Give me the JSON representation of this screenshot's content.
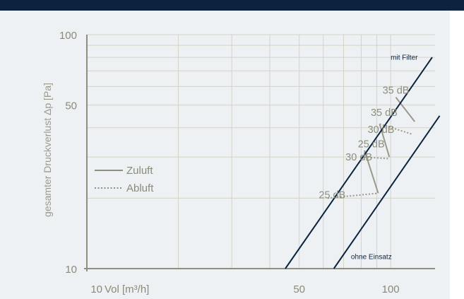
{
  "chart_data": {
    "type": "line",
    "title": "",
    "ylabel": "gesamter Druckverlust Δp [Pa]",
    "xlabel": "Vol [m³/h]",
    "x_scale": "log",
    "y_scale": "log",
    "xlim": [
      10,
      140
    ],
    "ylim": [
      10,
      100
    ],
    "x_ticks": [
      {
        "value": 10,
        "label": "10"
      },
      {
        "value": 50,
        "label": "50"
      },
      {
        "value": 100,
        "label": "100"
      }
    ],
    "y_ticks": [
      {
        "value": 10,
        "label": "10"
      },
      {
        "value": 50,
        "label": "50"
      },
      {
        "value": 100,
        "label": "100"
      }
    ],
    "grid": true,
    "series": [
      {
        "name": "mit Filter",
        "color": "#0c2340",
        "style": "solid",
        "x": [
          45,
          137
        ],
        "y": [
          10,
          80
        ]
      },
      {
        "name": "ohne Einsatz",
        "color": "#0c2340",
        "style": "solid",
        "x": [
          65,
          145
        ],
        "y": [
          10,
          45
        ]
      }
    ],
    "legend": {
      "placement": "left",
      "entries": [
        {
          "label": "Zuluft",
          "style": "solid",
          "color": "#8f8f7f"
        },
        {
          "label": "Abluft",
          "style": "dotted",
          "color": "#8f8f7f"
        }
      ]
    },
    "sound_levels": {
      "Zuluft": [
        {
          "label": "25 dB",
          "x1": 82,
          "y1": 32,
          "x2": 91,
          "y2": 21
        },
        {
          "label": "35 dB",
          "x1": 92,
          "y1": 41.5,
          "x2": 99,
          "y2": 30
        },
        {
          "label": "35 dB",
          "x1": 104,
          "y1": 54,
          "x2": 120,
          "y2": 42.5
        }
      ],
      "Abluft": [
        {
          "label": "25 dB",
          "x1": 62,
          "y1": 20,
          "x2": 91,
          "y2": 21
        },
        {
          "label": "30 dB",
          "x1": 80,
          "y1": 30,
          "x2": 99,
          "y2": 29.5
        },
        {
          "label": "30 dB",
          "x1": 92,
          "y1": 41.5,
          "x2": 118,
          "y2": 37.5
        }
      ]
    },
    "annotations": [
      {
        "text": "mit Filter",
        "x": 100,
        "y": 78
      },
      {
        "text": "ohne Einsatz",
        "x": 74,
        "y": 11
      },
      {
        "text": "35 dB",
        "x": 94,
        "y": 56
      },
      {
        "text": "35 dB",
        "x": 86,
        "y": 45
      },
      {
        "text": "30 dB",
        "x": 84,
        "y": 38
      },
      {
        "text": "25 dB",
        "x": 78,
        "y": 33
      },
      {
        "text": "30 dB",
        "x": 71,
        "y": 29
      },
      {
        "text": "25 dB",
        "x": 58,
        "y": 20
      }
    ]
  }
}
